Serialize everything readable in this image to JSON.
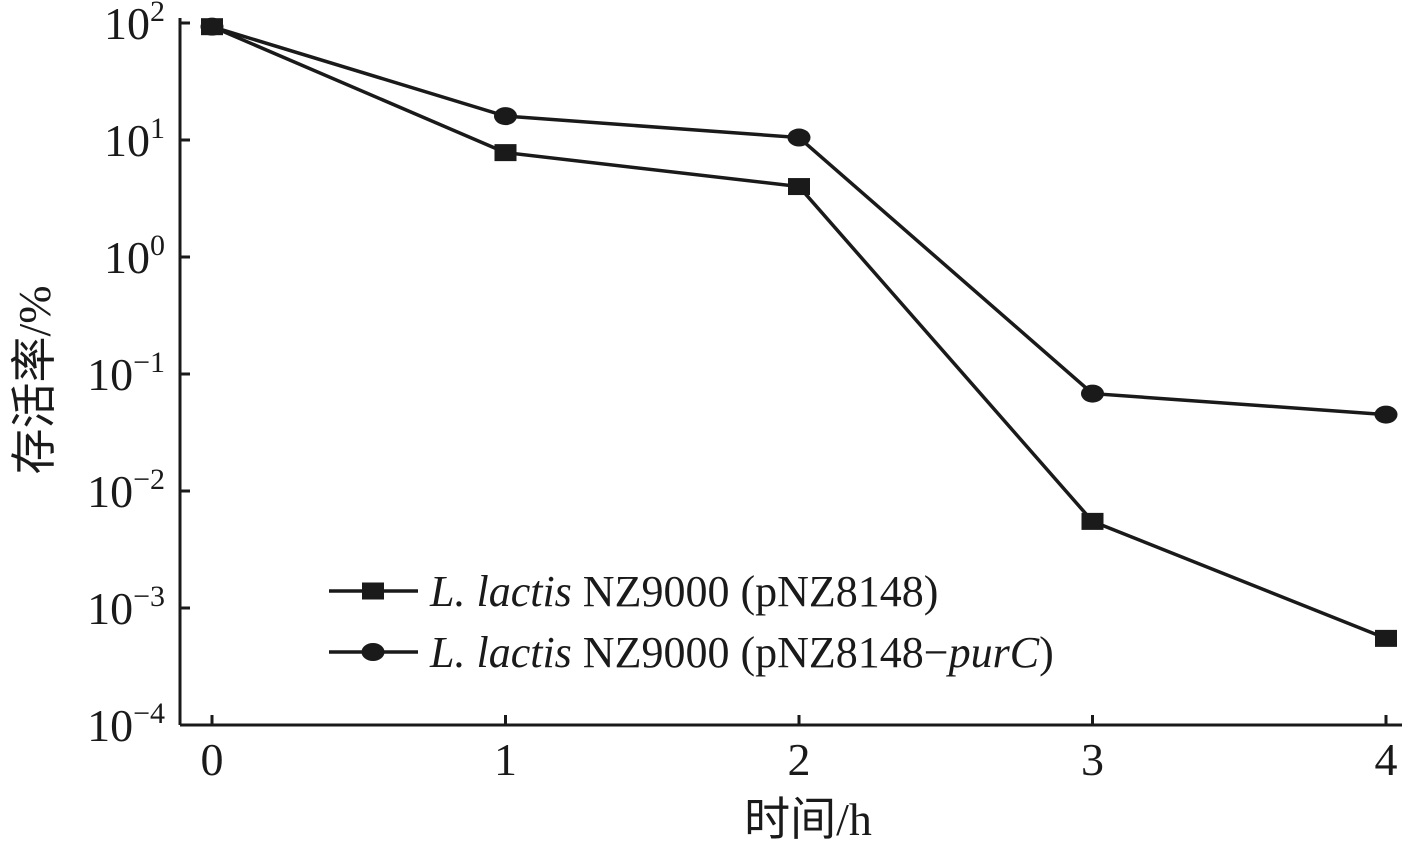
{
  "chart_data": {
    "type": "line",
    "xlabel": "时间/h",
    "ylabel": "存活率/%",
    "x": [
      0,
      1,
      2,
      3,
      4
    ],
    "x_ticks": [
      "0",
      "1",
      "2",
      "3",
      "4"
    ],
    "y_scale": "log",
    "ylim": [
      0.0001,
      100
    ],
    "y_ticks": [
      {
        "value": 100,
        "base": "10",
        "exp": "2"
      },
      {
        "value": 10,
        "base": "10",
        "exp": "1"
      },
      {
        "value": 1,
        "base": "10",
        "exp": "0"
      },
      {
        "value": 0.1,
        "base": "10",
        "exp": "−1"
      },
      {
        "value": 0.01,
        "base": "10",
        "exp": "−2"
      },
      {
        "value": 0.001,
        "base": "10",
        "exp": "−3"
      },
      {
        "value": 0.0001,
        "base": "10",
        "exp": "−4"
      }
    ],
    "legend_position": "bottom-left",
    "series": [
      {
        "name": "L. lactis NZ9000 (pNZ8148)",
        "name_parts": [
          {
            "text": "L. lactis",
            "italic": true
          },
          {
            "text": " NZ9000 (pNZ8148)",
            "italic": false
          }
        ],
        "marker": "square",
        "color": "#1a1a1a",
        "values": [
          93,
          7.8,
          4.0,
          0.0055,
          0.00055
        ]
      },
      {
        "name": "L. lactis NZ9000 (pNZ8148−purC)",
        "name_parts": [
          {
            "text": "L. lactis",
            "italic": true
          },
          {
            "text": " NZ9000 (pNZ8148−",
            "italic": false
          },
          {
            "text": "purC",
            "italic": true
          },
          {
            "text": ")",
            "italic": false
          }
        ],
        "marker": "circle",
        "color": "#1a1a1a",
        "values": [
          93,
          16,
          10.5,
          0.068,
          0.045
        ]
      }
    ]
  }
}
